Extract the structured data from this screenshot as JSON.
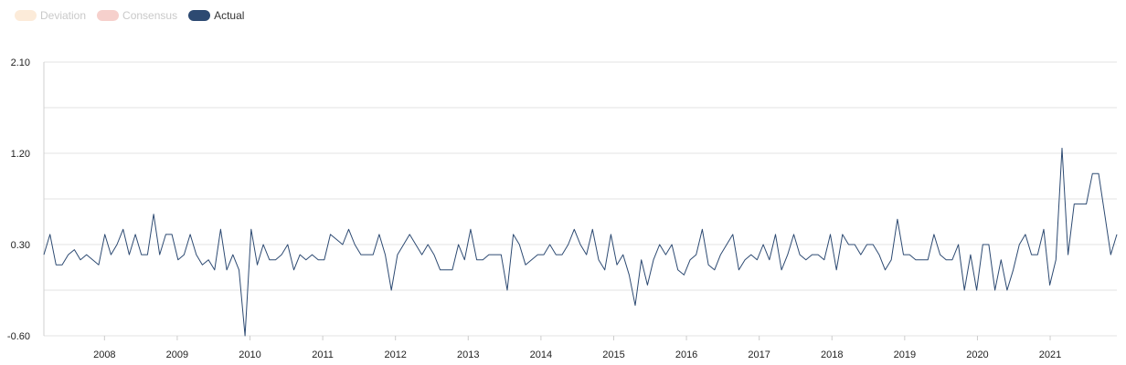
{
  "legend": {
    "items": [
      {
        "label": "Deviation",
        "color": "#fcebd9",
        "active": false
      },
      {
        "label": "Consensus",
        "color": "#f6d0cc",
        "active": false
      },
      {
        "label": "Actual",
        "color": "#2d4a72",
        "active": true
      }
    ]
  },
  "chart_data": {
    "type": "line",
    "title": "",
    "xlabel": "",
    "ylabel": "",
    "ylim": [
      -0.6,
      2.1
    ],
    "y_ticks": [
      "2.10",
      "1.20",
      "0.30",
      "-0.60"
    ],
    "x_ticks": [
      "2008",
      "2009",
      "2010",
      "2011",
      "2012",
      "2013",
      "2014",
      "2015",
      "2016",
      "2017",
      "2018",
      "2019",
      "2020",
      "2021"
    ],
    "x_start": "2007-03",
    "x_end": "2021-12",
    "grid": true,
    "legend_position": "top-left",
    "series": [
      {
        "name": "Actual",
        "color": "#2d4a72",
        "values": [
          0.2,
          0.4,
          0.1,
          0.1,
          0.2,
          0.25,
          0.15,
          0.2,
          0.15,
          0.1,
          0.4,
          0.2,
          0.3,
          0.45,
          0.2,
          0.4,
          0.2,
          0.2,
          0.6,
          0.2,
          0.4,
          0.4,
          0.15,
          0.2,
          0.4,
          0.2,
          0.1,
          0.15,
          0.05,
          0.45,
          0.05,
          0.2,
          0.05,
          -0.6,
          0.45,
          0.1,
          0.3,
          0.15,
          0.15,
          0.2,
          0.3,
          0.05,
          0.2,
          0.15,
          0.2,
          0.15,
          0.15,
          0.4,
          0.35,
          0.3,
          0.45,
          0.3,
          0.2,
          0.2,
          0.2,
          0.4,
          0.2,
          -0.15,
          0.2,
          0.3,
          0.4,
          0.3,
          0.2,
          0.3,
          0.2,
          0.05,
          0.05,
          0.05,
          0.3,
          0.15,
          0.45,
          0.15,
          0.15,
          0.2,
          0.2,
          0.2,
          -0.15,
          0.4,
          0.3,
          0.1,
          0.15,
          0.2,
          0.2,
          0.3,
          0.2,
          0.2,
          0.3,
          0.45,
          0.3,
          0.2,
          0.45,
          0.15,
          0.05,
          0.4,
          0.1,
          0.2,
          0.0,
          -0.3,
          0.15,
          -0.1,
          0.15,
          0.3,
          0.2,
          0.3,
          0.05,
          0.0,
          0.15,
          0.2,
          0.45,
          0.1,
          0.05,
          0.2,
          0.3,
          0.4,
          0.05,
          0.15,
          0.2,
          0.15,
          0.3,
          0.15,
          0.4,
          0.05,
          0.2,
          0.4,
          0.2,
          0.15,
          0.2,
          0.2,
          0.15,
          0.4,
          0.05,
          0.4,
          0.3,
          0.3,
          0.2,
          0.3,
          0.3,
          0.2,
          0.05,
          0.15,
          0.55,
          0.2,
          0.2,
          0.15,
          0.15,
          0.15,
          0.4,
          0.2,
          0.15,
          0.15,
          0.3,
          -0.15,
          0.2,
          -0.15,
          0.3,
          0.3,
          -0.15,
          0.15,
          -0.15,
          0.05,
          0.3,
          0.4,
          0.2,
          0.2,
          0.45,
          -0.1,
          0.15,
          1.25,
          0.2,
          0.7,
          0.7,
          0.7,
          1.0,
          1.0,
          0.6,
          0.2,
          0.4
        ]
      }
    ]
  }
}
